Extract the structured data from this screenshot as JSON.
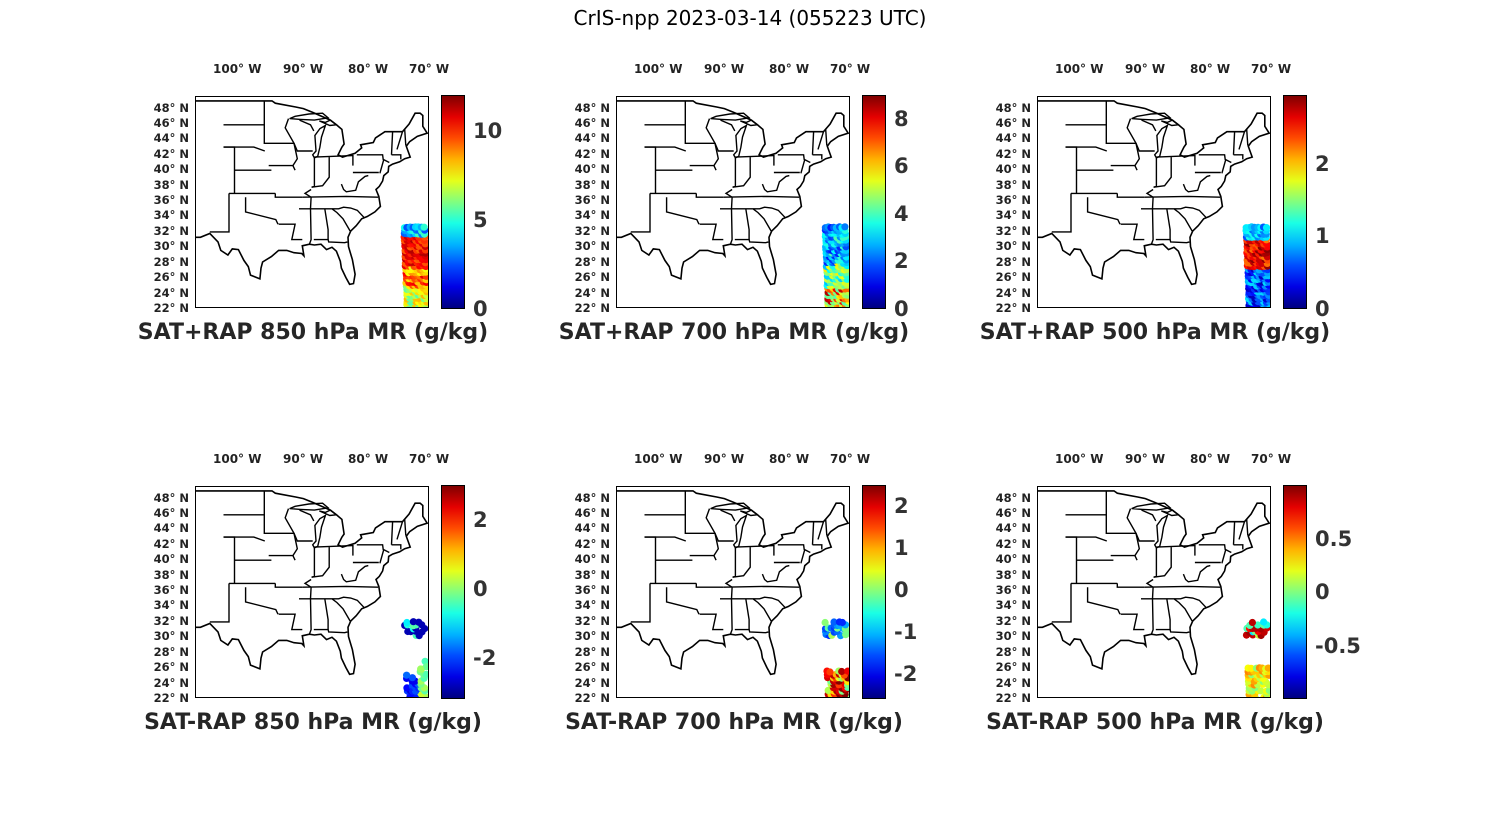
{
  "figure_title": "CrIS-npp 2023-03-14 (055223 UTC)",
  "lon_labels": [
    "100° W",
    "90° W",
    "80° W",
    "70° W"
  ],
  "lat_labels": [
    "48° N",
    "46° N",
    "44° N",
    "42° N",
    "40° N",
    "38° N",
    "36° N",
    "34° N",
    "32° N",
    "30° N",
    "28° N",
    "26° N",
    "24° N",
    "22° N"
  ],
  "colormap": "jet",
  "colors": {
    "coastline": "#000000",
    "background": "#ffffff"
  },
  "panels": [
    {
      "title": "SAT+RAP 850 hPa MR (g/kg)",
      "cbar_ticks": [
        "0",
        "5",
        "10"
      ],
      "cbar_tick_values": [
        0,
        5,
        10
      ],
      "cbar_range": [
        0,
        12
      ],
      "pattern": "sum850"
    },
    {
      "title": "SAT+RAP 700 hPa MR (g/kg)",
      "cbar_ticks": [
        "0",
        "2",
        "4",
        "6",
        "8"
      ],
      "cbar_tick_values": [
        0,
        2,
        4,
        6,
        8
      ],
      "cbar_range": [
        0,
        9
      ],
      "pattern": "sum700"
    },
    {
      "title": "SAT+RAP 500 hPa MR (g/kg)",
      "cbar_ticks": [
        "0",
        "1",
        "2"
      ],
      "cbar_tick_values": [
        0,
        1,
        2
      ],
      "cbar_range": [
        0,
        2.95
      ],
      "pattern": "sum500"
    },
    {
      "title": "SAT-RAP 850 hPa MR (g/kg)",
      "cbar_ticks": [
        "-2",
        "0",
        "2"
      ],
      "cbar_tick_values": [
        -2,
        0,
        2
      ],
      "cbar_range": [
        -3.2,
        3
      ],
      "pattern": "diff850"
    },
    {
      "title": "SAT-RAP 700 hPa MR (g/kg)",
      "cbar_ticks": [
        "-2",
        "-1",
        "0",
        "1",
        "2"
      ],
      "cbar_tick_values": [
        -2,
        -1,
        0,
        1,
        2
      ],
      "cbar_range": [
        -2.6,
        2.5
      ],
      "pattern": "diff700"
    },
    {
      "title": "SAT-RAP 500 hPa MR (g/kg)",
      "cbar_ticks": [
        "-0.5",
        "0",
        "0.5"
      ],
      "cbar_tick_values": [
        -0.5,
        0,
        0.5
      ],
      "cbar_range": [
        -1,
        1
      ],
      "pattern": "diff500"
    }
  ]
}
